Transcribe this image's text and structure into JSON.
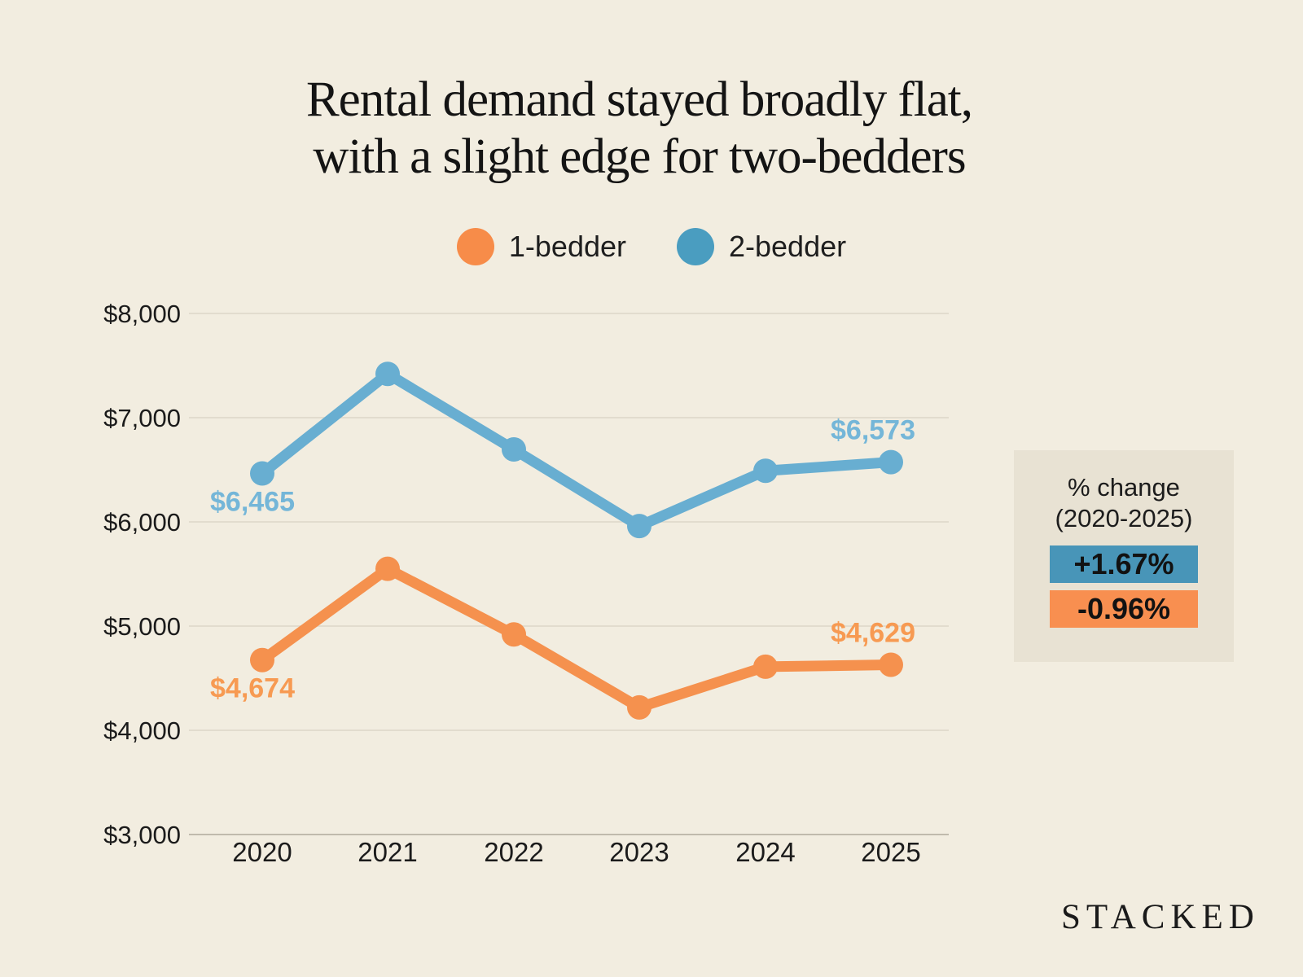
{
  "title": {
    "line1": "Rental demand stayed broadly flat,",
    "line2": "with a slight edge for two-bedders"
  },
  "legend": {
    "items": [
      {
        "label": "1-bedder",
        "color": "#F78C49"
      },
      {
        "label": "2-bedder",
        "color": "#4A9DC0"
      }
    ]
  },
  "chart_data": {
    "type": "line",
    "x": [
      "2020",
      "2021",
      "2022",
      "2023",
      "2024",
      "2025"
    ],
    "series": [
      {
        "name": "2-bedder",
        "color": "#68AED1",
        "label_color": "#74B6D8",
        "values": [
          6465,
          7420,
          6695,
          5960,
          6490,
          6573
        ],
        "endpoint_labels": {
          "first": "$6,465",
          "last": "$6,573"
        }
      },
      {
        "name": "1-bedder",
        "color": "#F5914E",
        "label_color": "#F79A52",
        "values": [
          4674,
          5550,
          4920,
          4220,
          4610,
          4629
        ],
        "endpoint_labels": {
          "first": "$4,674",
          "last": "$4,629"
        }
      }
    ],
    "title": "Rental demand stayed broadly flat, with a slight edge for two-bedders",
    "xlabel": "",
    "ylabel": "",
    "ylim": [
      3000,
      8000
    ],
    "yticks": [
      {
        "value": 8000,
        "label": "$8,000"
      },
      {
        "value": 7000,
        "label": "$7,000"
      },
      {
        "value": 6000,
        "label": "$6,000"
      },
      {
        "value": 5000,
        "label": "$5,000"
      },
      {
        "value": 4000,
        "label": "$4,000"
      },
      {
        "value": 3000,
        "label": "$3,000"
      }
    ],
    "grid": true,
    "legend_position": "top"
  },
  "change_panel": {
    "heading_line1": "% change",
    "heading_line2": "(2020-2025)",
    "items": [
      {
        "series": "2-bedder",
        "value": "+1.67%",
        "color": "#4895B8"
      },
      {
        "series": "1-bedder",
        "value": "-0.96%",
        "color": "#F88F50"
      }
    ]
  },
  "brand": {
    "logo_text": "STACKED"
  },
  "colors": {
    "background": "#F2EDE0",
    "panel_background": "#E8E2D3",
    "gridline": "#DCD6C8",
    "axis_line": "#C0BAAC",
    "text": "#1B1B1B"
  }
}
